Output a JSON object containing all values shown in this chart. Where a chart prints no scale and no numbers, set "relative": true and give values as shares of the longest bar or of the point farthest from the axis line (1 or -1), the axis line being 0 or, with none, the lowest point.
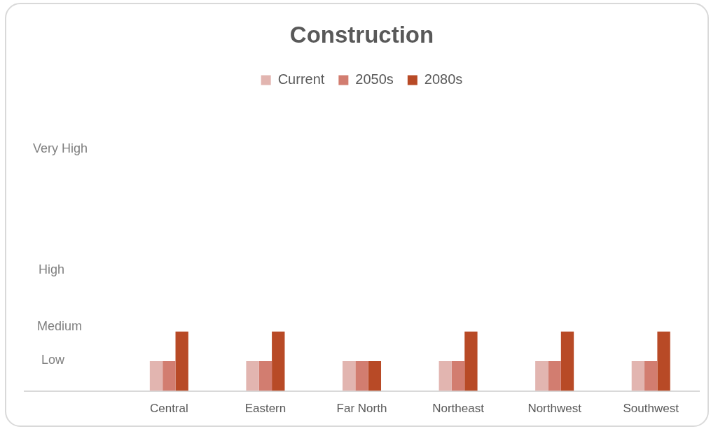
{
  "chart_data": {
    "type": "bar",
    "title": "Construction",
    "relative": true,
    "categories": [
      null,
      "Central",
      "Eastern",
      "Far North",
      "Northeast",
      "Northwest",
      "Southwest"
    ],
    "series": [
      {
        "name": "Current",
        "color": "#e2b5b0",
        "values": [
          null,
          0.5,
          0.5,
          0.5,
          0.5,
          0.5,
          0.5
        ]
      },
      {
        "name": "2050s",
        "color": "#d27d70",
        "values": [
          null,
          0.5,
          0.5,
          0.5,
          0.5,
          0.5,
          0.5
        ]
      },
      {
        "name": "2080s",
        "color": "#b84a26",
        "values": [
          null,
          1,
          1,
          0.5,
          1,
          1,
          1
        ]
      }
    ],
    "annotations": [
      "Low",
      "Medium",
      "High",
      "Very High"
    ],
    "legend": "top"
  }
}
